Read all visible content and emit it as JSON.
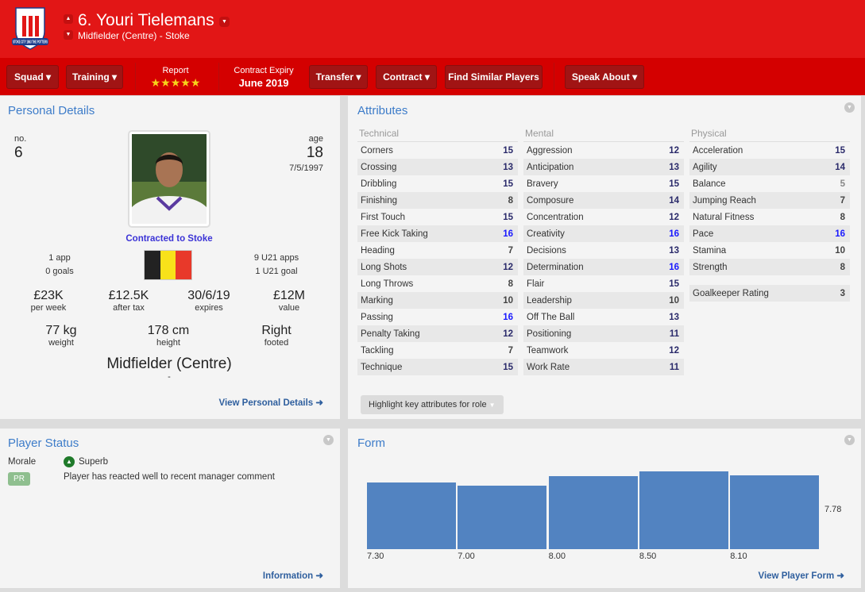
{
  "header": {
    "title": "6. Youri Tielemans",
    "subtitle": "Midfielder (Centre) - Stoke",
    "crest_text": "STOKE CITY 1863 THE POTTERS"
  },
  "toolbar": {
    "squad": "Squad",
    "training": "Training",
    "report_label": "Report",
    "report_stars": "★★★★★",
    "report_rating": 5,
    "contract_label": "Contract Expiry",
    "contract_value": "June 2019",
    "transfer": "Transfer",
    "contract": "Contract",
    "find_similar": "Find Similar Players",
    "speak_about": "Speak About"
  },
  "personal": {
    "title": "Personal Details",
    "no_label": "no.",
    "no": "6",
    "age_label": "age",
    "age": "18",
    "dob": "7/5/1997",
    "contracted": "Contracted to Stoke",
    "apps": "1 app",
    "goals": "0 goals",
    "u21_apps": "9 U21 apps",
    "u21_goals": "1 U21 goal",
    "nationality_flag": "belgium-flag",
    "wage": "£23K",
    "wage_label": "per week",
    "after_tax": "£12.5K",
    "after_tax_label": "after tax",
    "expires": "30/6/19",
    "expires_label": "expires",
    "value": "£12M",
    "value_label": "value",
    "weight": "77 kg",
    "weight_label": "weight",
    "height": "178 cm",
    "height_label": "height",
    "foot": "Right",
    "foot_label": "footed",
    "position": "Midfielder (Centre)",
    "role": "-",
    "link": "View Personal Details ➜"
  },
  "attributes": {
    "title": "Attributes",
    "highlight_button": "Highlight key attributes for role",
    "technical": {
      "label": "Technical",
      "items": [
        [
          "Corners",
          15
        ],
        [
          "Crossing",
          13
        ],
        [
          "Dribbling",
          15
        ],
        [
          "Finishing",
          8
        ],
        [
          "First Touch",
          15
        ],
        [
          "Free Kick Taking",
          16
        ],
        [
          "Heading",
          7
        ],
        [
          "Long Shots",
          12
        ],
        [
          "Long Throws",
          8
        ],
        [
          "Marking",
          10
        ],
        [
          "Passing",
          16
        ],
        [
          "Penalty Taking",
          12
        ],
        [
          "Tackling",
          7
        ],
        [
          "Technique",
          15
        ]
      ]
    },
    "mental": {
      "label": "Mental",
      "items": [
        [
          "Aggression",
          12
        ],
        [
          "Anticipation",
          13
        ],
        [
          "Bravery",
          15
        ],
        [
          "Composure",
          14
        ],
        [
          "Concentration",
          12
        ],
        [
          "Creativity",
          16
        ],
        [
          "Decisions",
          13
        ],
        [
          "Determination",
          16
        ],
        [
          "Flair",
          15
        ],
        [
          "Leadership",
          10
        ],
        [
          "Off The Ball",
          13
        ],
        [
          "Positioning",
          11
        ],
        [
          "Teamwork",
          12
        ],
        [
          "Work Rate",
          11
        ]
      ]
    },
    "physical": {
      "label": "Physical",
      "items": [
        [
          "Acceleration",
          15
        ],
        [
          "Agility",
          14
        ],
        [
          "Balance",
          5
        ],
        [
          "Jumping Reach",
          7
        ],
        [
          "Natural Fitness",
          8
        ],
        [
          "Pace",
          16
        ],
        [
          "Stamina",
          10
        ],
        [
          "Strength",
          8
        ]
      ]
    },
    "gk_label": "Goalkeeper Rating",
    "gk_value": "3",
    "colors": {
      "high": "#1a1aff",
      "good": "#2b2b6b",
      "mid": "#444444",
      "low": "#888888"
    }
  },
  "status": {
    "title": "Player Status",
    "morale_label": "Morale",
    "morale": "Superb",
    "badge": "PR",
    "comment": "Player has reacted well to recent manager comment",
    "link": "Information ➜"
  },
  "form": {
    "title": "Form",
    "link": "View Player Form ➜"
  },
  "chart_data": {
    "type": "bar",
    "categories": [
      "7.30",
      "7.00",
      "8.00",
      "8.50",
      "8.10"
    ],
    "values": [
      7.3,
      7.0,
      8.0,
      8.5,
      8.1
    ],
    "average_label": "7.78",
    "average": 7.78,
    "color": "#5283c1",
    "grid": false
  }
}
